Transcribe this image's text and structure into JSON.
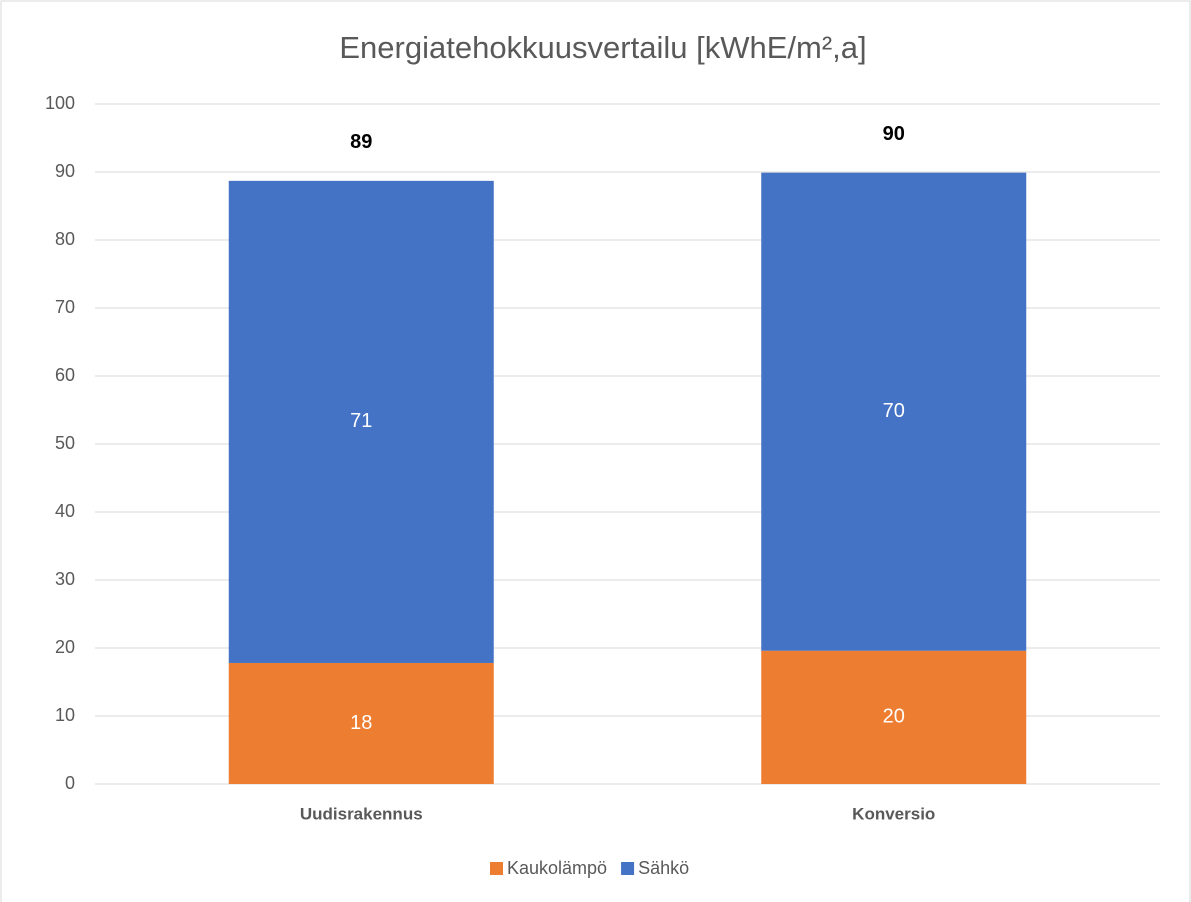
{
  "chart_data": {
    "type": "stacked_bar",
    "title": "Energiatehokkuusvertailu [kWhE/m²,a]",
    "categories": [
      "Uudisrakennus",
      "Konversio"
    ],
    "series": [
      {
        "name": "Kaukolämpö",
        "color": "#ed7d31",
        "values": [
          17.8,
          19.6
        ],
        "value_labels": [
          "18",
          "20"
        ]
      },
      {
        "name": "Sähkö",
        "color": "#4472c4",
        "values": [
          70.9,
          70.3
        ],
        "value_labels": [
          "71",
          "70"
        ]
      }
    ],
    "totals": [
      88.7,
      89.9
    ],
    "total_labels": [
      "89",
      "90"
    ],
    "ylim": [
      0,
      100
    ],
    "yticks": [
      0,
      10,
      20,
      30,
      40,
      50,
      60,
      70,
      80,
      90,
      100
    ],
    "grid": true,
    "legend": "bottom"
  }
}
